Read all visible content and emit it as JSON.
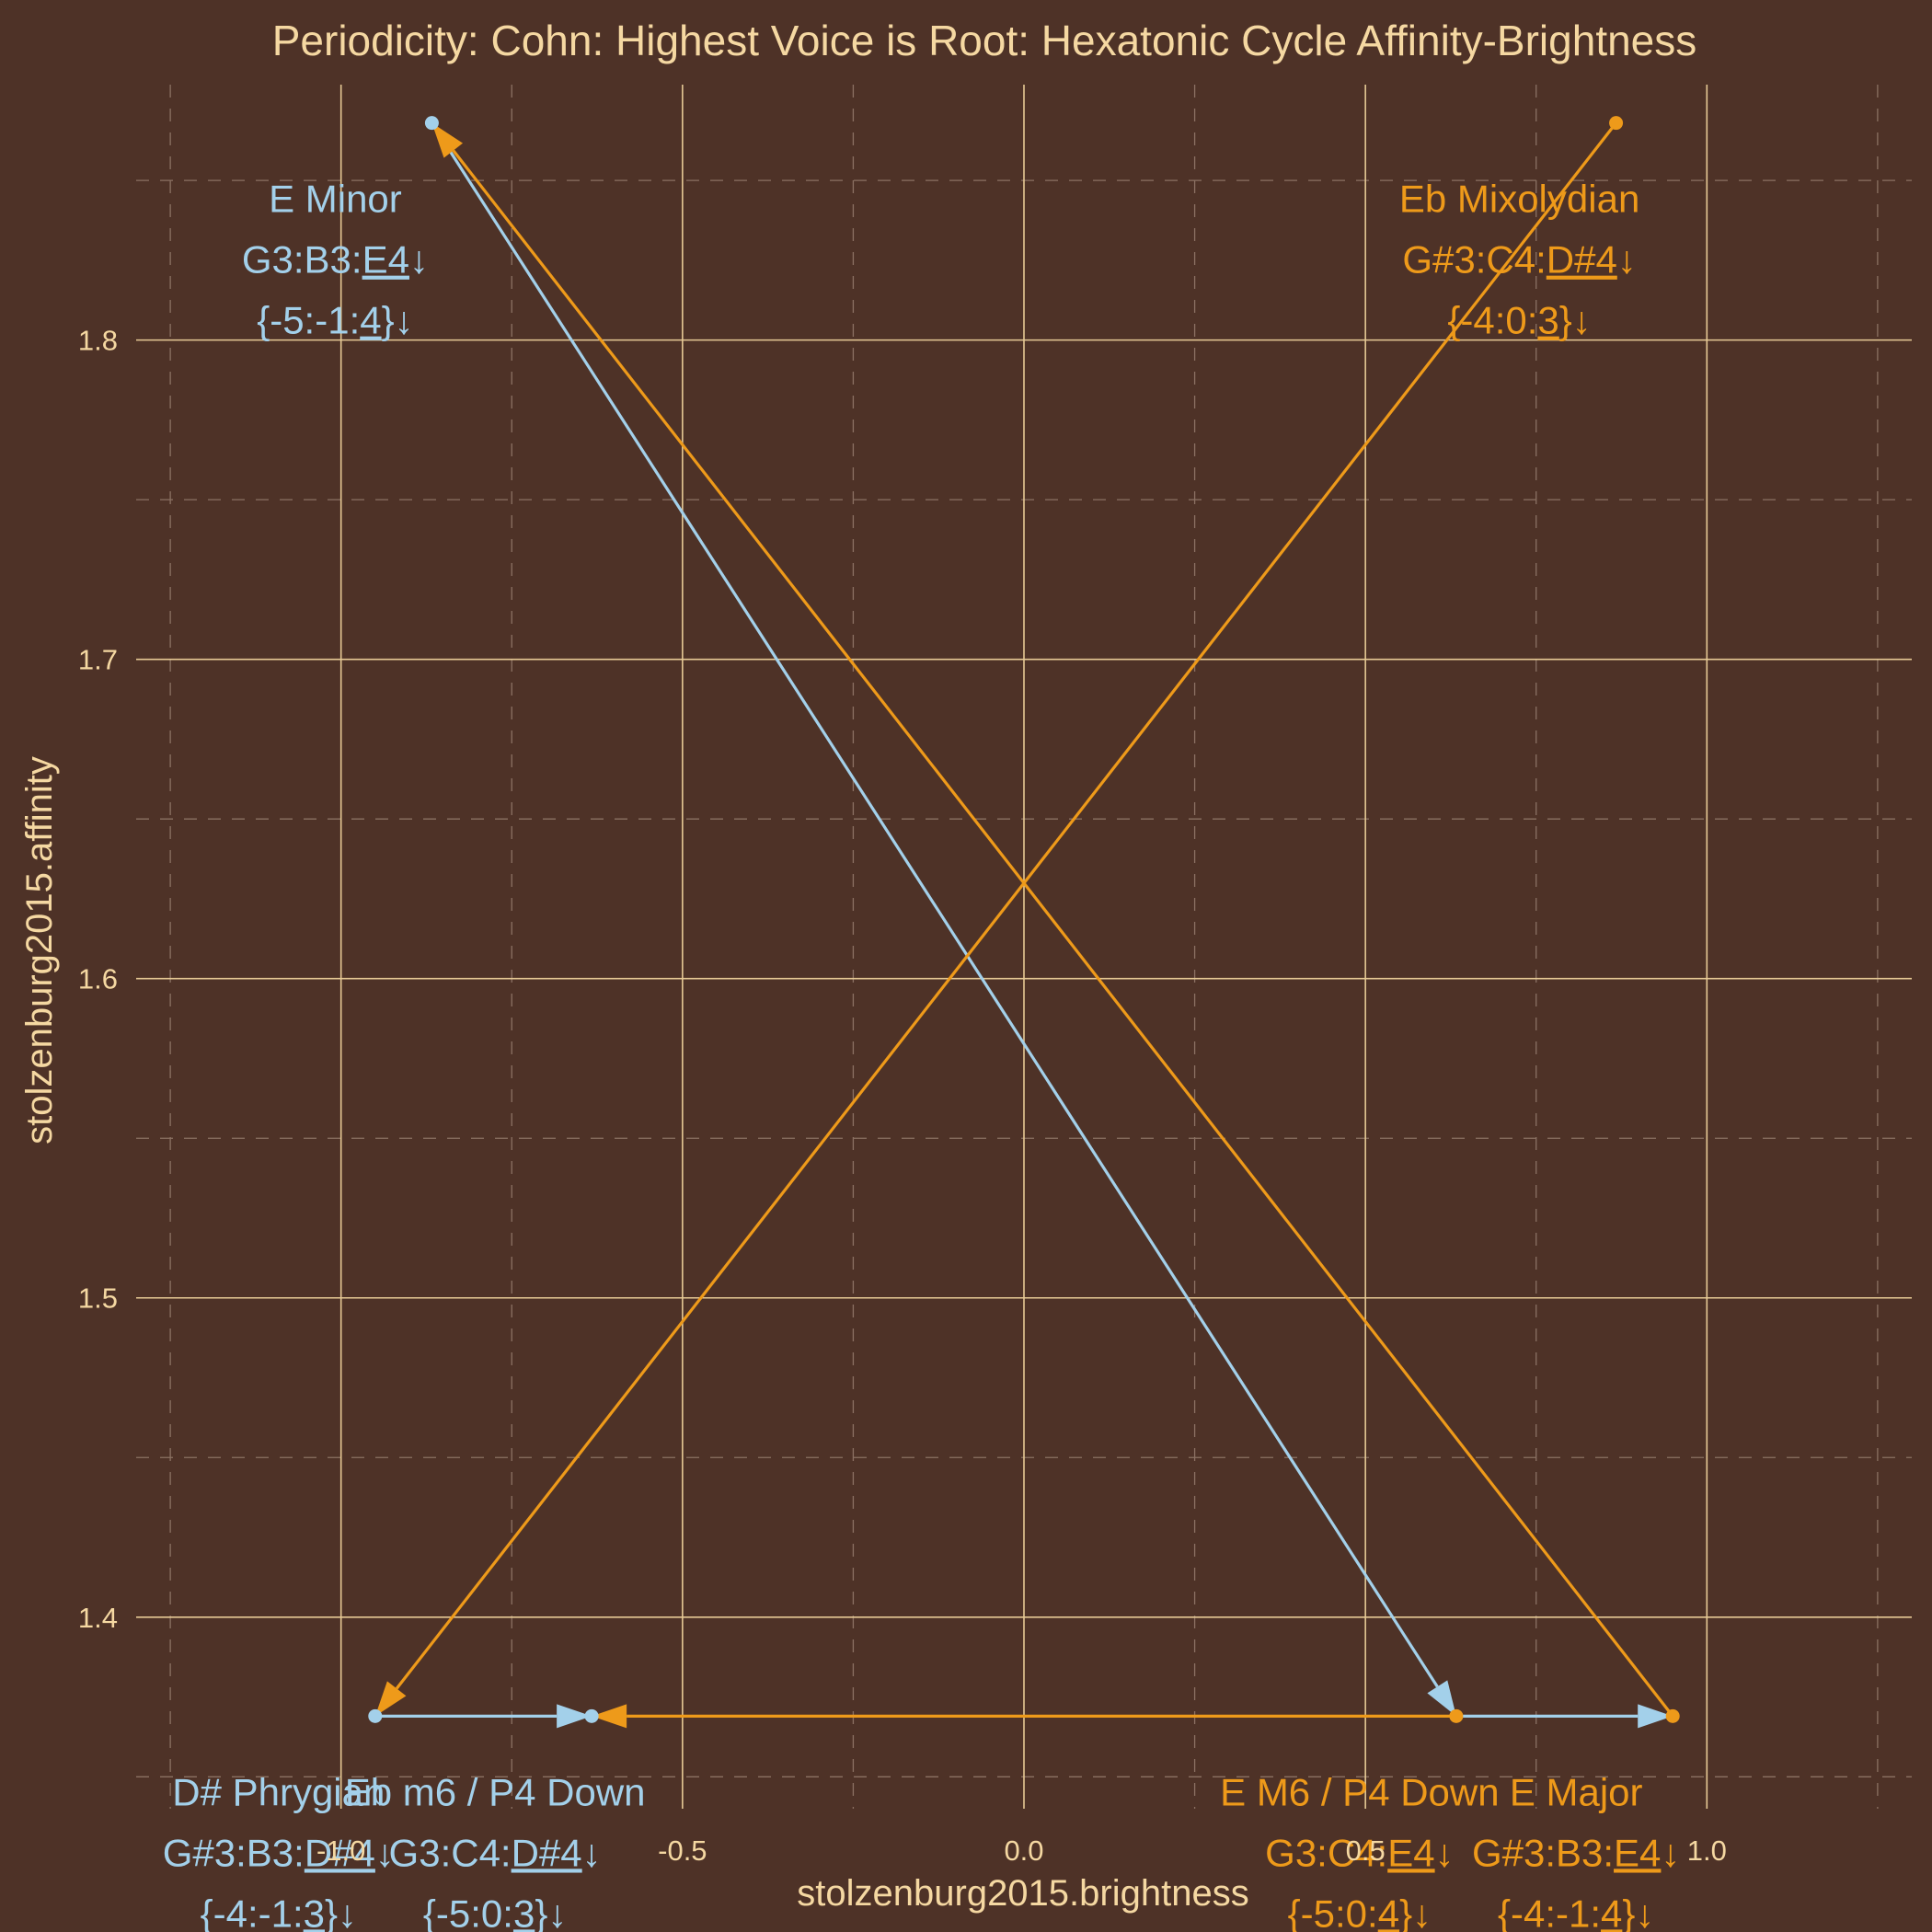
{
  "chart_data": {
    "type": "scatter",
    "title": "Periodicity: Cohn: Highest Voice is Root: Hexatonic Cycle Affinity-Brightness",
    "xlabel": "stolzenburg2015.brightness",
    "ylabel": "stolzenburg2015.affinity",
    "xlim": [
      -1.3,
      1.3
    ],
    "ylim": [
      1.34,
      1.88
    ],
    "x_ticks": [
      -1.0,
      -0.5,
      0.0,
      0.5,
      1.0
    ],
    "x_tick_labels": [
      "-1.0",
      "-0.5",
      "0.0",
      "0.5",
      "1.0"
    ],
    "y_ticks": [
      1.4,
      1.5,
      1.6,
      1.7,
      1.8
    ],
    "y_tick_labels": [
      "1.4",
      "1.5",
      "1.6",
      "1.7",
      "1.8"
    ],
    "grid": true,
    "legend": "none",
    "colors": {
      "background": "#4e3227",
      "text": "#f5d8a2",
      "grid_major": "#e6c995",
      "grid_minor": "#8b7163",
      "blue": "#a3d0ea",
      "orange": "#ee9a1a"
    },
    "points": [
      {
        "id": "e-minor",
        "x": -0.867,
        "y": 1.868,
        "color": "blue",
        "lines": [
          [
            {
              "t": "E  Minor"
            }
          ],
          [
            {
              "t": "G3:B3:"
            },
            {
              "t": "E4",
              "u": true
            },
            {
              "t": "↓"
            }
          ],
          [
            {
              "t": "{-5:-1:"
            },
            {
              "t": "4",
              "u": true
            },
            {
              "t": "}↓"
            }
          ]
        ]
      },
      {
        "id": "eb-mixolydian",
        "x": 0.867,
        "y": 1.868,
        "color": "orange",
        "lines": [
          [
            {
              "t": "Eb Mixolydian"
            }
          ],
          [
            {
              "t": "G#3:C4:"
            },
            {
              "t": "D#4",
              "u": true
            },
            {
              "t": "↓"
            }
          ],
          [
            {
              "t": "{-4:0:"
            },
            {
              "t": "3",
              "u": true
            },
            {
              "t": "}↓"
            }
          ]
        ]
      },
      {
        "id": "d-sharp-phrygian",
        "x": -0.95,
        "y": 1.369,
        "color": "blue",
        "lines": [
          [
            {
              "t": "D# Phrygian"
            }
          ],
          [
            {
              "t": "G#3:B3:"
            },
            {
              "t": "D#4",
              "u": true
            },
            {
              "t": "↓"
            }
          ],
          [
            {
              "t": "{-4:-1:"
            },
            {
              "t": "3",
              "u": true
            },
            {
              "t": "}↓"
            }
          ]
        ]
      },
      {
        "id": "eb-m6-p4-down",
        "x": -0.633,
        "y": 1.369,
        "color": "blue",
        "lines": [
          [
            {
              "t": "Eb m6 / P4 Down"
            }
          ],
          [
            {
              "t": "G3:C4:"
            },
            {
              "t": "D#4",
              "u": true
            },
            {
              "t": "↓"
            }
          ],
          [
            {
              "t": "{-5:0:"
            },
            {
              "t": "3",
              "u": true
            },
            {
              "t": "}↓"
            }
          ]
        ]
      },
      {
        "id": "e-m6-p4-down",
        "x": 0.633,
        "y": 1.369,
        "color": "orange",
        "lines": [
          [
            {
              "t": "E  M6 / P4 Down"
            }
          ],
          [
            {
              "t": "G3:C4:"
            },
            {
              "t": "E4",
              "u": true
            },
            {
              "t": "↓"
            }
          ],
          [
            {
              "t": "{-5:0:"
            },
            {
              "t": "4",
              "u": true
            },
            {
              "t": "}↓"
            }
          ]
        ]
      },
      {
        "id": "e-major",
        "x": 0.95,
        "y": 1.369,
        "color": "orange",
        "lines": [
          [
            {
              "t": "E  Major"
            }
          ],
          [
            {
              "t": "G#3:B3:"
            },
            {
              "t": "E4",
              "u": true
            },
            {
              "t": "↓"
            }
          ],
          [
            {
              "t": "{-4:-1:"
            },
            {
              "t": "4",
              "u": true
            },
            {
              "t": "}↓"
            }
          ]
        ]
      }
    ],
    "arrows": [
      {
        "from": "e-minor",
        "to": "e-m6-p4-down",
        "color": "blue"
      },
      {
        "from": "e-m6-p4-down",
        "to": "e-major",
        "color": "blue"
      },
      {
        "from": "d-sharp-phrygian",
        "to": "eb-m6-p4-down",
        "color": "blue"
      },
      {
        "from": "e-major",
        "to": "e-minor",
        "color": "orange"
      },
      {
        "from": "eb-mixolydian",
        "to": "d-sharp-phrygian",
        "color": "orange"
      },
      {
        "from": "e-m6-p4-down",
        "to": "eb-m6-p4-down",
        "color": "orange"
      }
    ]
  }
}
